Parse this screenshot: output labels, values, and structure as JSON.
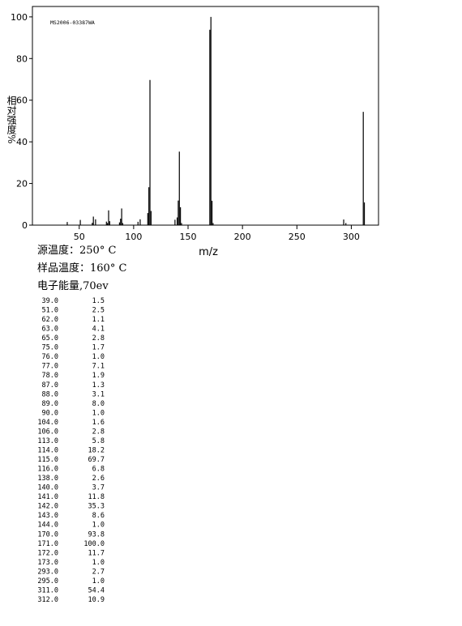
{
  "chart_data": {
    "type": "bar",
    "title": "MS2006-03387WA",
    "x_label": "m/z",
    "y_label": "相对强度%",
    "x": [
      39,
      51,
      62,
      63,
      65,
      75,
      76,
      77,
      78,
      87,
      88,
      89,
      90,
      104,
      106,
      113,
      114,
      115,
      116,
      138,
      140,
      141,
      142,
      143,
      144,
      170,
      171,
      172,
      173,
      293,
      295,
      311,
      312
    ],
    "values": [
      1.5,
      2.5,
      1.1,
      4.1,
      2.8,
      1.7,
      1.0,
      7.1,
      1.9,
      1.3,
      3.1,
      8.0,
      1.0,
      1.6,
      2.8,
      5.8,
      18.2,
      69.7,
      6.8,
      2.6,
      3.7,
      11.8,
      35.3,
      8.6,
      1.0,
      93.8,
      100,
      11.7,
      1.0,
      2.7,
      1.0,
      54.4,
      10.9
    ],
    "x_labels": [
      "39.0",
      "51.0",
      "62.0",
      "63.0",
      "65.0",
      "75.0",
      "76.0",
      "77.0",
      "78.0",
      "87.0",
      "88.0",
      "89.0",
      "90.0",
      "104.0",
      "106.0",
      "113.0",
      "114.0",
      "115.0",
      "116.0",
      "138.0",
      "140.0",
      "141.0",
      "142.0",
      "143.0",
      "144.0",
      "170.0",
      "171.0",
      "172.0",
      "173.0",
      "293.0",
      "295.0",
      "311.0",
      "312.0"
    ],
    "value_labels": [
      "1.5",
      "2.5",
      "1.1",
      "4.1",
      "2.8",
      "1.7",
      "1.0",
      "7.1",
      "1.9",
      "1.3",
      "3.1",
      "8.0",
      "1.0",
      "1.6",
      "2.8",
      "5.8",
      "18.2",
      "69.7",
      "6.8",
      "2.6",
      "3.7",
      "11.8",
      "35.3",
      "8.6",
      "1.0",
      "93.8",
      "100.0",
      "11.7",
      "1.0",
      "2.7",
      "1.0",
      "54.4",
      "10.9"
    ],
    "color": "#000000",
    "xlim": [
      7,
      325
    ],
    "xticks": [
      50,
      100,
      150,
      200,
      250,
      300
    ],
    "ylim": [
      0,
      105
    ],
    "yticks": [
      0,
      20,
      40,
      60,
      80,
      100
    ]
  },
  "conditions": [
    "源温度：250° C",
    "样品温度：160° C",
    "电子能量,70ev"
  ]
}
